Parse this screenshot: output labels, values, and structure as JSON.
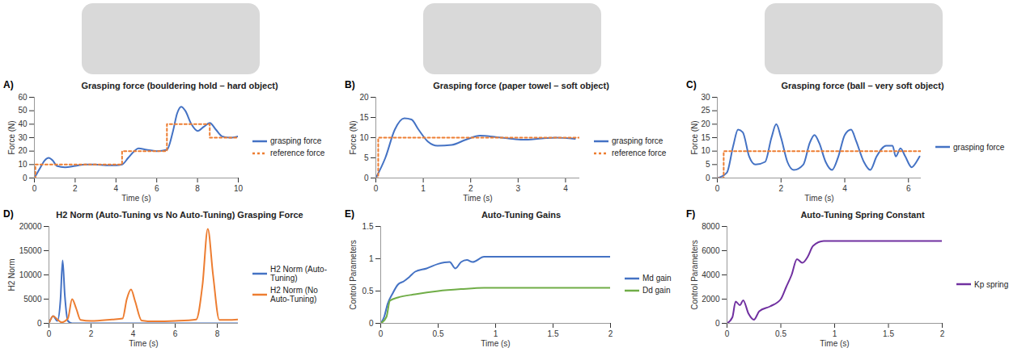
{
  "chart_data": [
    {
      "type": "line",
      "panel_label": "A)",
      "title": "Grasping force (bouldering hold – hard object)",
      "x_label": "Time (s)",
      "y_label": "Force (N)",
      "xlim": [
        0,
        10
      ],
      "xticks": [
        0,
        2,
        4,
        6,
        8,
        10
      ],
      "ylim": [
        0,
        60
      ],
      "yticks": [
        0,
        10,
        20,
        30,
        40,
        50,
        60
      ],
      "grid": false,
      "legend": "right",
      "series": [
        {
          "name": "grasping force",
          "color": "#4472c4",
          "type": "line",
          "line_style": "solid",
          "x": [
            0,
            0.3,
            0.5,
            0.7,
            0.9,
            1.1,
            1.5,
            2,
            2.5,
            3,
            3.5,
            4,
            4.3,
            4.6,
            4.9,
            5.1,
            5.5,
            6,
            6.5,
            6.8,
            7.0,
            7.2,
            7.4,
            7.7,
            8.0,
            8.3,
            8.6,
            8.9,
            9.2,
            9.6,
            10
          ],
          "values": [
            0,
            8,
            13,
            15,
            13,
            9,
            8,
            9,
            10,
            10,
            9.5,
            9.5,
            10,
            15,
            20,
            22,
            21,
            20,
            21,
            35,
            48,
            53,
            50,
            40,
            35,
            38,
            41,
            36,
            31,
            30,
            31
          ]
        },
        {
          "name": "reference force",
          "color": "#ed7d31",
          "type": "step",
          "line_style": "dashed",
          "x": [
            0,
            0.05,
            4.3,
            6.5,
            8.6,
            10
          ],
          "values": [
            0,
            10,
            20,
            40,
            30,
            30
          ]
        }
      ]
    },
    {
      "type": "line",
      "panel_label": "B)",
      "title": "Grasping force (paper towel – soft object)",
      "x_label": "Time (s)",
      "y_label": "Force (N)",
      "xlim": [
        0,
        4.3
      ],
      "xticks": [
        0,
        1,
        2,
        3,
        4
      ],
      "ylim": [
        0,
        20
      ],
      "yticks": [
        0,
        5,
        10,
        15,
        20
      ],
      "grid": false,
      "legend": "right",
      "series": [
        {
          "name": "grasping force",
          "color": "#4472c4",
          "type": "line",
          "line_style": "solid",
          "x": [
            0,
            0.2,
            0.4,
            0.6,
            0.75,
            0.9,
            1.1,
            1.3,
            1.6,
            1.9,
            2.2,
            2.5,
            2.8,
            3.1,
            3.5,
            3.8,
            4.2
          ],
          "values": [
            0,
            5,
            12,
            14.8,
            14.5,
            12,
            9,
            8,
            8.2,
            9.5,
            10.5,
            10.2,
            9.8,
            9.5,
            9.8,
            10,
            9.7
          ]
        },
        {
          "name": "reference force",
          "color": "#ed7d31",
          "type": "step",
          "line_style": "dashed",
          "x": [
            0,
            0.05,
            4.3
          ],
          "values": [
            0,
            10,
            10
          ]
        }
      ]
    },
    {
      "type": "line",
      "panel_label": "C)",
      "title": "Grasping force (ball – very soft object)",
      "x_label": "Time (s)",
      "y_label": "Force (N)",
      "xlim": [
        0,
        6.4
      ],
      "xticks": [
        0,
        2,
        4,
        6
      ],
      "ylim": [
        0,
        30
      ],
      "yticks": [
        0,
        5,
        10,
        15,
        20,
        25,
        30
      ],
      "grid": false,
      "legend": "right",
      "series": [
        {
          "name": "grasping force",
          "color": "#4472c4",
          "type": "line",
          "line_style": "solid",
          "x": [
            0,
            0.3,
            0.5,
            0.65,
            0.8,
            1.0,
            1.2,
            1.5,
            1.7,
            1.85,
            2.0,
            2.2,
            2.4,
            2.7,
            2.9,
            3.05,
            3.2,
            3.4,
            3.6,
            3.8,
            4.0,
            4.2,
            4.35,
            4.6,
            4.8,
            5.0,
            5.3,
            5.5,
            5.6,
            5.75,
            5.9,
            6.1,
            6.25,
            6.35
          ],
          "values": [
            0,
            2,
            12,
            18,
            17,
            8,
            5,
            6,
            15,
            20,
            15,
            6,
            3,
            5,
            13,
            16,
            13,
            6,
            3,
            8,
            16,
            18,
            14,
            6,
            3,
            8,
            12,
            12,
            8,
            11,
            8,
            4,
            6,
            8
          ]
        },
        {
          "color": "#ed7d31",
          "type": "step",
          "line_style": "dashed",
          "x": [
            0,
            0.2,
            6.4
          ],
          "values": [
            0,
            10,
            10
          ]
        }
      ]
    },
    {
      "type": "line",
      "panel_label": "D)",
      "title": "H2 Norm (Auto-Tuning vs No Auto-Tuning) Grasping Force",
      "x_label": "Time (s)",
      "y_label": "H2 Norm",
      "xlim": [
        0,
        9
      ],
      "xticks": [
        0,
        2,
        4,
        6,
        8
      ],
      "ylim": [
        0,
        20000
      ],
      "yticks": [
        0,
        5000,
        10000,
        15000,
        20000
      ],
      "grid": false,
      "legend": "right",
      "series": [
        {
          "name": "H2 Norm (Auto-Tuning)",
          "color": "#4472c4",
          "type": "line",
          "line_style": "solid",
          "x": [
            0,
            0.2,
            0.4,
            0.55,
            0.65,
            0.75,
            0.9,
            1.1,
            2,
            4,
            6,
            8,
            9
          ],
          "values": [
            0,
            1500,
            500,
            5000,
            13000,
            6000,
            500,
            0,
            0,
            0,
            0,
            0,
            0
          ]
        },
        {
          "name": "H2 Norm (No Auto-Tuning)",
          "color": "#ed7d31",
          "type": "line",
          "line_style": "solid",
          "x": [
            0,
            0.2,
            0.4,
            0.6,
            0.9,
            1.1,
            1.3,
            1.5,
            2,
            3,
            3.5,
            3.7,
            3.9,
            4.1,
            4.4,
            5,
            6,
            7,
            7.3,
            7.55,
            7.8,
            8.1,
            8.5,
            9
          ],
          "values": [
            0,
            1500,
            800,
            200,
            1000,
            5000,
            3000,
            700,
            500,
            800,
            1000,
            5000,
            7000,
            4500,
            600,
            400,
            500,
            800,
            8000,
            19500,
            10000,
            700,
            700,
            800
          ]
        }
      ]
    },
    {
      "type": "line",
      "panel_label": "E)",
      "title": "Auto-Tuning Gains",
      "x_label": "Time (s)",
      "y_label": "Control Parameters",
      "xlim": [
        0,
        2
      ],
      "xticks": [
        0,
        0.5,
        1,
        1.5,
        2
      ],
      "ylim": [
        0,
        1.5
      ],
      "yticks": [
        0,
        0.5,
        1,
        1.5
      ],
      "grid": false,
      "legend": "right",
      "series": [
        {
          "name": "Md gain",
          "color": "#4472c4",
          "type": "line",
          "line_style": "solid",
          "x": [
            0,
            0.03,
            0.06,
            0.1,
            0.15,
            0.2,
            0.25,
            0.3,
            0.4,
            0.5,
            0.6,
            0.65,
            0.7,
            0.75,
            0.8,
            0.9,
            1,
            2
          ],
          "values": [
            0,
            0.1,
            0.3,
            0.45,
            0.6,
            0.65,
            0.72,
            0.8,
            0.85,
            0.92,
            0.95,
            0.85,
            0.95,
            0.98,
            0.95,
            1.03,
            1.03,
            1.03
          ]
        },
        {
          "name": "Dd gain",
          "color": "#70ad47",
          "type": "line",
          "line_style": "solid",
          "x": [
            0,
            0.05,
            0.08,
            0.15,
            0.3,
            0.5,
            0.7,
            0.9,
            2
          ],
          "values": [
            0,
            0.1,
            0.35,
            0.4,
            0.45,
            0.5,
            0.53,
            0.55,
            0.55
          ]
        }
      ]
    },
    {
      "type": "line",
      "panel_label": "F)",
      "title": "Auto-Tuning Spring Constant",
      "x_label": "Time (s)",
      "y_label": "Control Parameters",
      "xlim": [
        0,
        2
      ],
      "xticks": [
        0,
        0.5,
        1,
        1.5,
        2
      ],
      "ylim": [
        0,
        8000
      ],
      "yticks": [
        0,
        2000,
        4000,
        6000,
        8000
      ],
      "grid": false,
      "legend": "right",
      "series": [
        {
          "name": "Kp spring",
          "color": "#7030a0",
          "type": "line",
          "line_style": "solid",
          "x": [
            0,
            0.05,
            0.08,
            0.12,
            0.15,
            0.2,
            0.25,
            0.3,
            0.4,
            0.5,
            0.55,
            0.6,
            0.65,
            0.7,
            0.75,
            0.8,
            0.9,
            2
          ],
          "values": [
            0,
            500,
            1800,
            1500,
            1900,
            800,
            300,
            1000,
            1400,
            2000,
            3000,
            4000,
            5300,
            5000,
            5500,
            6400,
            6800,
            6800
          ]
        }
      ]
    }
  ]
}
